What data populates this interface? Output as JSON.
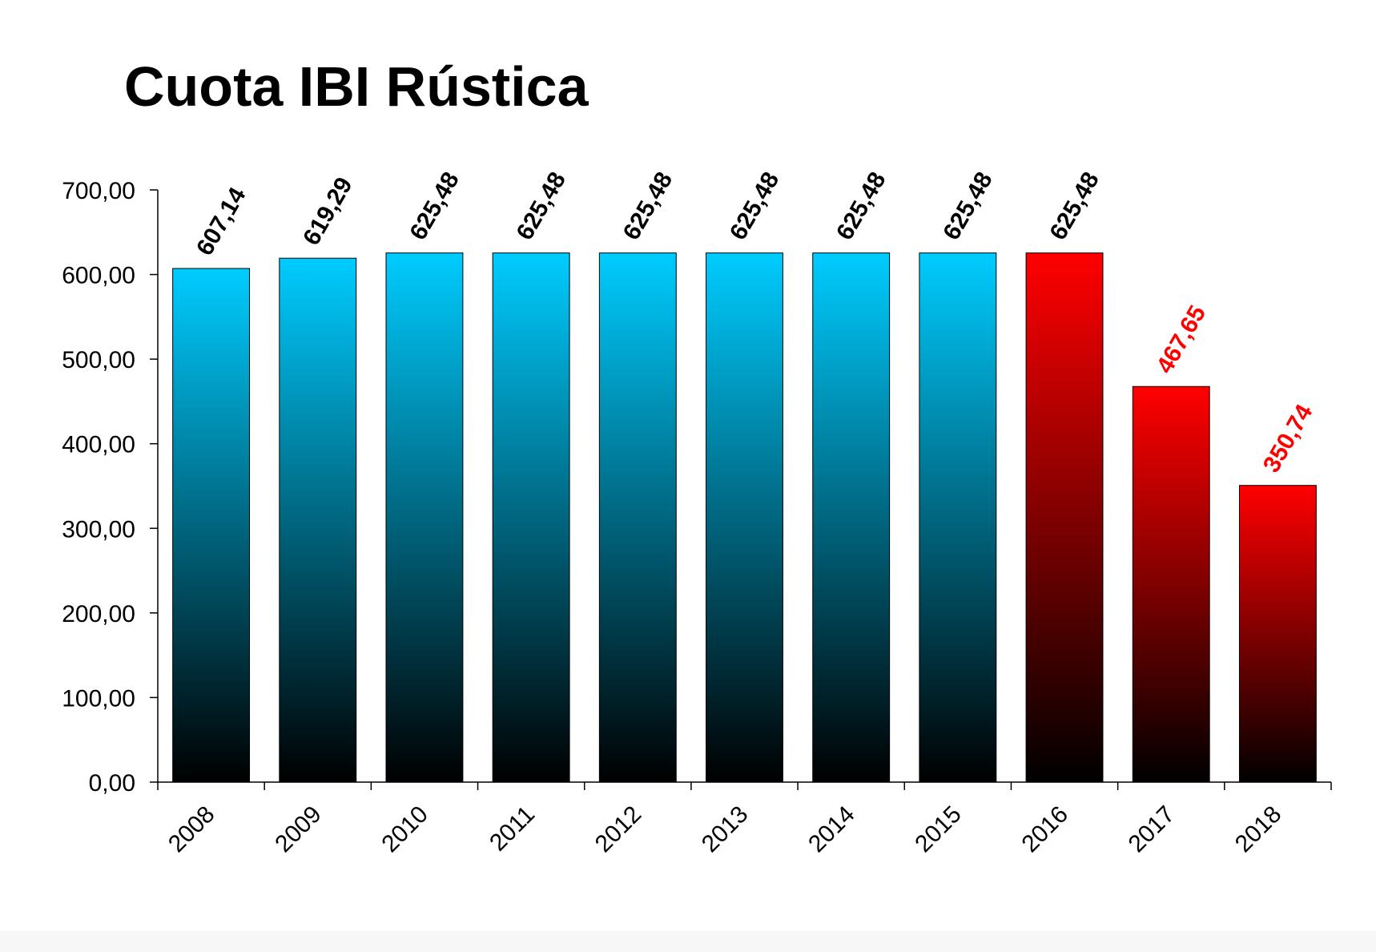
{
  "chart_data": {
    "type": "bar",
    "title": "Cuota IBI Rústica",
    "xlabel": "",
    "ylabel": "",
    "categories": [
      "2008",
      "2009",
      "2010",
      "2011",
      "2012",
      "2013",
      "2014",
      "2015",
      "2016",
      "2017",
      "2018"
    ],
    "values": [
      607.14,
      619.29,
      625.48,
      625.48,
      625.48,
      625.48,
      625.48,
      625.48,
      625.48,
      467.65,
      350.74
    ],
    "value_labels": [
      "607,14",
      "619,29",
      "625,48",
      "625,48",
      "625,48",
      "625,48",
      "625,48",
      "625,48",
      "625,48",
      "467,65",
      "350,74"
    ],
    "ylim": [
      0,
      700
    ],
    "yticks": [
      0,
      100,
      200,
      300,
      400,
      500,
      600,
      700
    ],
    "ytick_labels": [
      "0,00",
      "100,00",
      "200,00",
      "300,00",
      "400,00",
      "500,00",
      "600,00",
      "700,00"
    ],
    "grid": false,
    "legend": "none",
    "highlighted": [
      "2016",
      "2017",
      "2018"
    ],
    "colors": {
      "bar_top": "#00CCFF",
      "bar_bottom": "#000000",
      "highlight_top": "#FF0000",
      "highlight_bottom": "#000000",
      "label_normal": "#000000",
      "label_highlight": "#FF0000"
    }
  }
}
